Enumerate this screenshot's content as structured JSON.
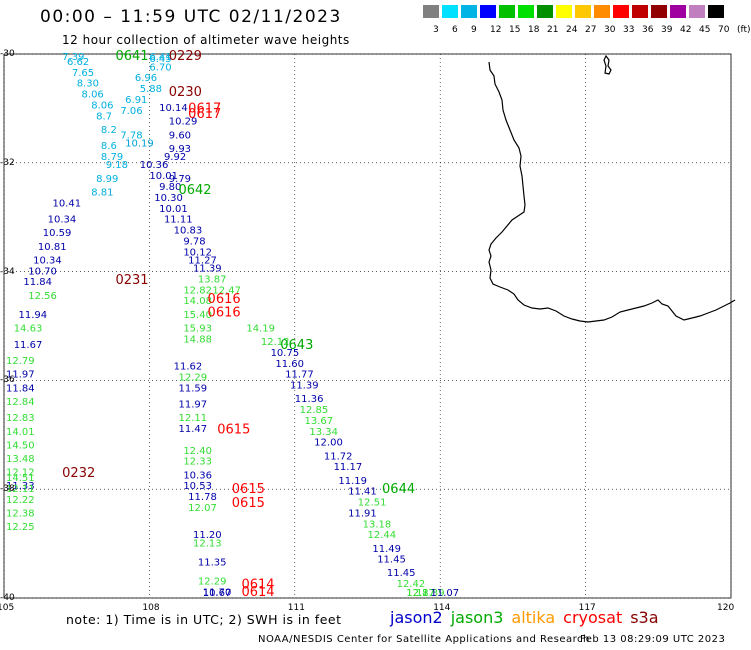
{
  "title": "00:00 – 11:59 UTC 02/11/2023",
  "subtitle": "12 hour collection of altimeter wave heights",
  "colorbar": {
    "colors": [
      "#808080",
      "#00e0ff",
      "#00b4e6",
      "#0000ff",
      "#00c000",
      "#00e000",
      "#009000",
      "#ffff00",
      "#ffc800",
      "#ff8c00",
      "#ff0000",
      "#c00000",
      "#900000",
      "#a000a0",
      "#c080c0",
      "#000000"
    ],
    "labels": [
      "3",
      "6",
      "9",
      "12",
      "15",
      "18",
      "21",
      "24",
      "27",
      "30",
      "33",
      "36",
      "39",
      "42",
      "45",
      "70",
      "(ft)"
    ]
  },
  "map": {
    "lon_ticks": [
      "105",
      "108",
      "111",
      "114",
      "117",
      "120"
    ],
    "lat_ticks": [
      "-30",
      "-32",
      "-34",
      "-36",
      "-38",
      "-40"
    ],
    "lon_range": [
      105,
      120
    ],
    "lat_range": [
      -40,
      -30
    ]
  },
  "satellite_colors": {
    "jason2": "#0000cc",
    "jason3": "#00aa00",
    "altika": "#ff9900",
    "cryosat": "#ff0000",
    "s3a": "#880000"
  },
  "wave_colors": {
    "c6": "#00b0e0",
    "c9": "#00a0d8",
    "c12": "#0000aa",
    "c15": "#33dd33"
  },
  "time_labels": [
    {
      "text": "0641",
      "sat": "jason3",
      "lon": 107.3,
      "lat": -30.0
    },
    {
      "text": "0229",
      "sat": "s3a",
      "lon": 108.4,
      "lat": -30.0
    },
    {
      "text": "0230",
      "sat": "s3a",
      "lon": 108.4,
      "lat": -30.7
    },
    {
      "text": "0617",
      "sat": "cryosat",
      "lon": 108.8,
      "lat": -31.0
    },
    {
      "text": "0617",
      "sat": "cryosat",
      "lon": 108.8,
      "lat": -31.1
    },
    {
      "text": "0642",
      "sat": "jason3",
      "lon": 108.6,
      "lat": -32.5
    },
    {
      "text": "0231",
      "sat": "s3a",
      "lon": 107.3,
      "lat": -34.15
    },
    {
      "text": "0616",
      "sat": "cryosat",
      "lon": 109.2,
      "lat": -34.5
    },
    {
      "text": "0616",
      "sat": "cryosat",
      "lon": 109.2,
      "lat": -34.75
    },
    {
      "text": "0643",
      "sat": "jason3",
      "lon": 110.7,
      "lat": -35.35
    },
    {
      "text": "0615",
      "sat": "cryosat",
      "lon": 109.4,
      "lat": -36.9
    },
    {
      "text": "0232",
      "sat": "s3a",
      "lon": 106.2,
      "lat": -37.7
    },
    {
      "text": "0615",
      "sat": "cryosat",
      "lon": 109.7,
      "lat": -38.0
    },
    {
      "text": "0615",
      "sat": "cryosat",
      "lon": 109.7,
      "lat": -38.25
    },
    {
      "text": "0644",
      "sat": "jason3",
      "lon": 112.8,
      "lat": -38.0
    },
    {
      "text": "0614",
      "sat": "cryosat",
      "lon": 109.9,
      "lat": -39.75
    },
    {
      "text": "0614",
      "sat": "cryosat",
      "lon": 109.9,
      "lat": -39.95
    }
  ],
  "wave_heights": [
    {
      "v": "7.39",
      "c": "c6",
      "lon": 106.2,
      "lat": -30.0
    },
    {
      "v": "6.62",
      "c": "c6",
      "lon": 106.3,
      "lat": -30.2
    },
    {
      "v": "7.65",
      "c": "c6",
      "lon": 106.4,
      "lat": -30.4
    },
    {
      "v": "8.30",
      "c": "c6",
      "lon": 106.5,
      "lat": -30.6
    },
    {
      "v": "8.06",
      "c": "c6",
      "lon": 106.6,
      "lat": -30.8
    },
    {
      "v": "8.06",
      "c": "c6",
      "lon": 106.8,
      "lat": -31.0
    },
    {
      "v": "8.7",
      "c": "c6",
      "lon": 106.9,
      "lat": -31.2
    },
    {
      "v": "8.2",
      "c": "c6",
      "lon": 107.0,
      "lat": -31.45
    },
    {
      "v": "8.6",
      "c": "c6",
      "lon": 107.0,
      "lat": -31.75
    },
    {
      "v": "8.79",
      "c": "c6",
      "lon": 107.0,
      "lat": -31.95
    },
    {
      "v": "9.18",
      "c": "c6",
      "lon": 107.1,
      "lat": -32.1
    },
    {
      "v": "8.99",
      "c": "c6",
      "lon": 106.9,
      "lat": -32.35
    },
    {
      "v": "8.81",
      "c": "c6",
      "lon": 106.8,
      "lat": -32.6
    },
    {
      "v": "6.41",
      "c": "c6",
      "lon": 108.0,
      "lat": -30.0
    },
    {
      "v": "6.45",
      "c": "c6",
      "lon": 108.0,
      "lat": -30.15
    },
    {
      "v": "6.70",
      "c": "c6",
      "lon": 108.0,
      "lat": -30.3
    },
    {
      "v": "6.96",
      "c": "c6",
      "lon": 107.7,
      "lat": -30.5
    },
    {
      "v": "5.88",
      "c": "c6",
      "lon": 107.8,
      "lat": -30.7
    },
    {
      "v": "6.91",
      "c": "c6",
      "lon": 107.5,
      "lat": -30.9
    },
    {
      "v": "7.06",
      "c": "c6",
      "lon": 107.4,
      "lat": -31.1
    },
    {
      "v": "7.78",
      "c": "c6",
      "lon": 107.4,
      "lat": -31.55
    },
    {
      "v": "10.19",
      "c": "c9",
      "lon": 107.5,
      "lat": -31.7
    },
    {
      "v": "10.14",
      "c": "c12",
      "lon": 108.2,
      "lat": -31.05
    },
    {
      "v": "10.29",
      "c": "c12",
      "lon": 108.4,
      "lat": -31.3
    },
    {
      "v": "9.60",
      "c": "c12",
      "lon": 108.4,
      "lat": -31.55
    },
    {
      "v": "9.93",
      "c": "c12",
      "lon": 108.4,
      "lat": -31.8
    },
    {
      "v": "9.92",
      "c": "c12",
      "lon": 108.3,
      "lat": -31.95
    },
    {
      "v": "10.36",
      "c": "c12",
      "lon": 107.8,
      "lat": -32.1
    },
    {
      "v": "10.01",
      "c": "c12",
      "lon": 108.0,
      "lat": -32.3
    },
    {
      "v": "9.79",
      "c": "c12",
      "lon": 108.4,
      "lat": -32.35
    },
    {
      "v": "9.80",
      "c": "c12",
      "lon": 108.2,
      "lat": -32.5
    },
    {
      "v": "10.30",
      "c": "c12",
      "lon": 108.1,
      "lat": -32.7
    },
    {
      "v": "10.01",
      "c": "c12",
      "lon": 108.2,
      "lat": -32.9
    },
    {
      "v": "11.11",
      "c": "c12",
      "lon": 108.3,
      "lat": -33.1
    },
    {
      "v": "10.83",
      "c": "c12",
      "lon": 108.5,
      "lat": -33.3
    },
    {
      "v": "9.78",
      "c": "c12",
      "lon": 108.7,
      "lat": -33.5
    },
    {
      "v": "10.12",
      "c": "c12",
      "lon": 108.7,
      "lat": -33.7
    },
    {
      "v": "11.27",
      "c": "c12",
      "lon": 108.8,
      "lat": -33.85
    },
    {
      "v": "11.39",
      "c": "c12",
      "lon": 108.9,
      "lat": -34.0
    },
    {
      "v": "10.41",
      "c": "c12",
      "lon": 106.0,
      "lat": -32.8
    },
    {
      "v": "10.34",
      "c": "c12",
      "lon": 105.9,
      "lat": -33.1
    },
    {
      "v": "10.59",
      "c": "c12",
      "lon": 105.8,
      "lat": -33.35
    },
    {
      "v": "10.81",
      "c": "c12",
      "lon": 105.7,
      "lat": -33.6
    },
    {
      "v": "10.34",
      "c": "c12",
      "lon": 105.6,
      "lat": -33.85
    },
    {
      "v": "10.70",
      "c": "c12",
      "lon": 105.5,
      "lat": -34.05
    },
    {
      "v": "11.84",
      "c": "c12",
      "lon": 105.4,
      "lat": -34.25
    },
    {
      "v": "11.94",
      "c": "c12",
      "lon": 105.3,
      "lat": -34.85
    },
    {
      "v": "11.67",
      "c": "c12",
      "lon": 105.2,
      "lat": -35.4
    },
    {
      "v": "11.97",
      "c": "c12",
      "lon": 105.0,
      "lat": -35.95
    },
    {
      "v": "11.84",
      "c": "c12",
      "lon": 105.0,
      "lat": -36.2
    },
    {
      "v": "11.33",
      "c": "c12",
      "lon": 104.9,
      "lat": -38.0
    },
    {
      "v": "12.56",
      "c": "c15",
      "lon": 105.5,
      "lat": -34.5
    },
    {
      "v": "14.63",
      "c": "c15",
      "lon": 105.2,
      "lat": -35.1
    },
    {
      "v": "12.79",
      "c": "c15",
      "lon": 105.0,
      "lat": -35.7
    },
    {
      "v": "12.84",
      "c": "c15",
      "lon": 104.9,
      "lat": -36.45
    },
    {
      "v": "12.83",
      "c": "c15",
      "lon": 104.8,
      "lat": -36.75
    },
    {
      "v": "14.01",
      "c": "c15",
      "lon": 104.7,
      "lat": -37.0
    },
    {
      "v": "14.50",
      "c": "c15",
      "lon": 104.6,
      "lat": -37.25
    },
    {
      "v": "13.48",
      "c": "c15",
      "lon": 104.5,
      "lat": -37.5
    },
    {
      "v": "12.12",
      "c": "c15",
      "lon": 104.4,
      "lat": -37.75
    },
    {
      "v": "12.11",
      "c": "c15",
      "lon": 104.3,
      "lat": -38.05
    },
    {
      "v": "14.51",
      "c": "c15",
      "lon": 104.2,
      "lat": -37.85
    },
    {
      "v": "12.22",
      "c": "c15",
      "lon": 104.1,
      "lat": -38.25
    },
    {
      "v": "12.38",
      "c": "c15",
      "lon": 104.0,
      "lat": -38.5
    },
    {
      "v": "12.25",
      "c": "c15",
      "lon": 103.9,
      "lat": -38.75
    },
    {
      "v": "13.87",
      "c": "c15",
      "lon": 109.0,
      "lat": -34.2
    },
    {
      "v": "12.82",
      "c": "c15",
      "lon": 108.7,
      "lat": -34.4
    },
    {
      "v": "12.47",
      "c": "c15",
      "lon": 109.3,
      "lat": -34.4
    },
    {
      "v": "14.08",
      "c": "c15",
      "lon": 108.7,
      "lat": -34.6
    },
    {
      "v": "15.40",
      "c": "c15",
      "lon": 108.7,
      "lat": -34.85
    },
    {
      "v": "15.93",
      "c": "c15",
      "lon": 108.7,
      "lat": -35.1
    },
    {
      "v": "14.19",
      "c": "c15",
      "lon": 110.0,
      "lat": -35.1
    },
    {
      "v": "14.88",
      "c": "c15",
      "lon": 108.7,
      "lat": -35.3
    },
    {
      "v": "12.12",
      "c": "c15",
      "lon": 110.3,
      "lat": -35.35
    },
    {
      "v": "10.75",
      "c": "c12",
      "lon": 110.5,
      "lat": -35.55
    },
    {
      "v": "11.60",
      "c": "c12",
      "lon": 110.6,
      "lat": -35.75
    },
    {
      "v": "11.77",
      "c": "c12",
      "lon": 110.8,
      "lat": -35.95
    },
    {
      "v": "11.39",
      "c": "c12",
      "lon": 110.9,
      "lat": -36.15
    },
    {
      "v": "11.36",
      "c": "c12",
      "lon": 111.0,
      "lat": -36.4
    },
    {
      "v": "12.85",
      "c": "c15",
      "lon": 111.1,
      "lat": -36.6
    },
    {
      "v": "13.67",
      "c": "c15",
      "lon": 111.2,
      "lat": -36.8
    },
    {
      "v": "13.34",
      "c": "c15",
      "lon": 111.3,
      "lat": -37.0
    },
    {
      "v": "12.00",
      "c": "c12",
      "lon": 111.4,
      "lat": -37.2
    },
    {
      "v": "11.72",
      "c": "c12",
      "lon": 111.6,
      "lat": -37.45
    },
    {
      "v": "11.17",
      "c": "c12",
      "lon": 111.8,
      "lat": -37.65
    },
    {
      "v": "11.19",
      "c": "c12",
      "lon": 111.9,
      "lat": -37.9
    },
    {
      "v": "11.41",
      "c": "c12",
      "lon": 112.1,
      "lat": -38.1
    },
    {
      "v": "12.51",
      "c": "c15",
      "lon": 112.3,
      "lat": -38.3
    },
    {
      "v": "11.91",
      "c": "c12",
      "lon": 112.1,
      "lat": -38.5
    },
    {
      "v": "13.18",
      "c": "c15",
      "lon": 112.4,
      "lat": -38.7
    },
    {
      "v": "12.44",
      "c": "c15",
      "lon": 112.5,
      "lat": -38.9
    },
    {
      "v": "11.49",
      "c": "c12",
      "lon": 112.6,
      "lat": -39.15
    },
    {
      "v": "11.45",
      "c": "c12",
      "lon": 112.7,
      "lat": -39.35
    },
    {
      "v": "11.45",
      "c": "c12",
      "lon": 112.9,
      "lat": -39.6
    },
    {
      "v": "12.42",
      "c": "c15",
      "lon": 113.1,
      "lat": -39.8
    },
    {
      "v": "12.87",
      "c": "c15",
      "lon": 113.3,
      "lat": -40.0
    },
    {
      "v": "12.17",
      "c": "c15",
      "lon": 113.3,
      "lat": -40.2
    },
    {
      "v": "12.39",
      "c": "c15",
      "lon": 113.5,
      "lat": -40.4
    },
    {
      "v": "11.07",
      "c": "c12",
      "lon": 113.8,
      "lat": -40.6
    },
    {
      "v": "11.62",
      "c": "c12",
      "lon": 108.5,
      "lat": -35.8
    },
    {
      "v": "12.29",
      "c": "c15",
      "lon": 108.6,
      "lat": -36.0
    },
    {
      "v": "11.59",
      "c": "c12",
      "lon": 108.6,
      "lat": -36.2
    },
    {
      "v": "11.97",
      "c": "c12",
      "lon": 108.6,
      "lat": -36.5
    },
    {
      "v": "12.11",
      "c": "c15",
      "lon": 108.6,
      "lat": -36.75
    },
    {
      "v": "11.47",
      "c": "c12",
      "lon": 108.6,
      "lat": -36.95
    },
    {
      "v": "12.40",
      "c": "c15",
      "lon": 108.7,
      "lat": -37.35
    },
    {
      "v": "12.33",
      "c": "c15",
      "lon": 108.7,
      "lat": -37.55
    },
    {
      "v": "10.36",
      "c": "c12",
      "lon": 108.7,
      "lat": -37.8
    },
    {
      "v": "10.53",
      "c": "c12",
      "lon": 108.7,
      "lat": -38.0
    },
    {
      "v": "11.78",
      "c": "c12",
      "lon": 108.8,
      "lat": -38.2
    },
    {
      "v": "12.07",
      "c": "c15",
      "lon": 108.8,
      "lat": -38.4
    },
    {
      "v": "11.20",
      "c": "c12",
      "lon": 108.9,
      "lat": -38.9
    },
    {
      "v": "12.13",
      "c": "c15",
      "lon": 108.9,
      "lat": -39.05
    },
    {
      "v": "11.35",
      "c": "c12",
      "lon": 109.0,
      "lat": -39.4
    },
    {
      "v": "12.29",
      "c": "c15",
      "lon": 109.0,
      "lat": -39.75
    },
    {
      "v": "11.70",
      "c": "c12",
      "lon": 109.1,
      "lat": -39.95
    },
    {
      "v": "10.67",
      "c": "c12",
      "lon": 109.1,
      "lat": -40.15
    }
  ],
  "note": "note: 1) Time is in UTC; 2) SWH is in feet",
  "legend": [
    {
      "name": "jason2",
      "sat": "jason2"
    },
    {
      "name": "jason3",
      "sat": "jason3"
    },
    {
      "name": "altika",
      "sat": "altika"
    },
    {
      "name": "cryosat",
      "sat": "cryosat"
    },
    {
      "name": "s3a",
      "sat": "s3a"
    }
  ],
  "footer_left": "NOAA/NESDIS Center for Satellite Applications and Research",
  "footer_right": "Feb 13 08:29:09 UTC 2023"
}
